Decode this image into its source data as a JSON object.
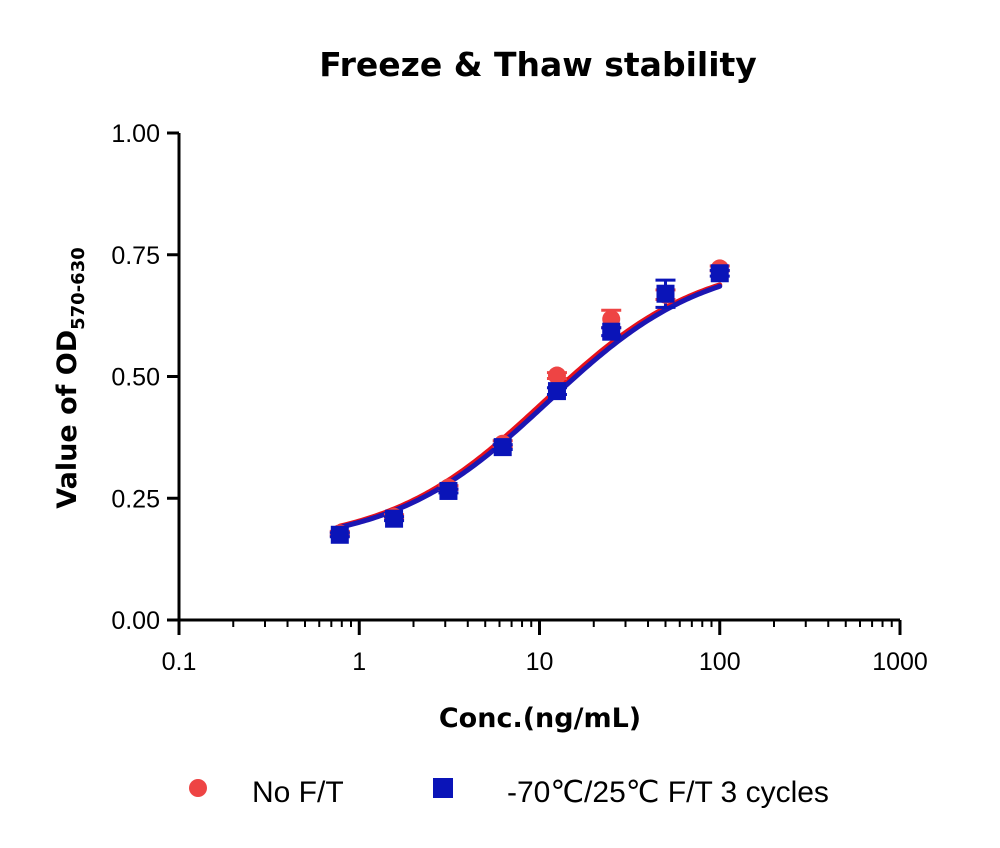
{
  "chart_data": {
    "type": "scatter",
    "title": "Freeze & Thaw stability",
    "xlabel": "Conc.(ng/mL)",
    "ylabel": {
      "main": "Value of OD",
      "subscript": "570-630"
    },
    "x_scale": "log",
    "xlim": [
      0.1,
      1000
    ],
    "ylim": [
      0,
      1
    ],
    "x_ticks": [
      0.1,
      1,
      10,
      100,
      1000
    ],
    "x_tick_labels": [
      "0.1",
      "1",
      "10",
      "100",
      "1000"
    ],
    "y_ticks": [
      0,
      0.25,
      0.5,
      0.75,
      1
    ],
    "y_tick_labels": [
      "0.00",
      "0.25",
      "0.50",
      "0.75",
      "1.00"
    ],
    "grid": false,
    "legend_position": "bottom",
    "fit": "four-parameter logistic",
    "series": [
      {
        "name": "No F/T",
        "marker": "circle",
        "color": "#ee4444",
        "line_color": "#e8111a",
        "x": [
          0.78,
          1.56,
          3.125,
          6.25,
          12.5,
          25,
          50,
          100
        ],
        "y": [
          0.178,
          0.212,
          0.272,
          0.362,
          0.502,
          0.618,
          0.668,
          0.722
        ],
        "error": [
          0.004,
          0.004,
          0.004,
          0.006,
          0.006,
          0.018,
          0.01,
          0.005
        ],
        "fit": {
          "bottom": 0.152,
          "top": 0.745,
          "ec50": 10.6,
          "hill": 1.0
        }
      },
      {
        "name": "-70℃/25℃ F/T 3 cycles",
        "marker": "square",
        "color": "#0a14b8",
        "line_color": "#1c16b3",
        "x": [
          0.78,
          1.56,
          3.125,
          6.25,
          12.5,
          25,
          50,
          100
        ],
        "y": [
          0.175,
          0.208,
          0.265,
          0.355,
          0.47,
          0.592,
          0.67,
          0.712
        ],
        "error": [
          0.004,
          0.004,
          0.004,
          0.005,
          0.007,
          0.008,
          0.028,
          0.006
        ],
        "fit": {
          "bottom": 0.152,
          "top": 0.745,
          "ec50": 11.2,
          "hill": 1.0
        }
      }
    ]
  },
  "legend": {
    "items": [
      {
        "label": "No F/T",
        "marker": "circle",
        "color": "#ee4444"
      },
      {
        "label": "-70℃/25℃ F/T 3 cycles",
        "marker": "square",
        "color": "#0a14b8"
      }
    ]
  }
}
